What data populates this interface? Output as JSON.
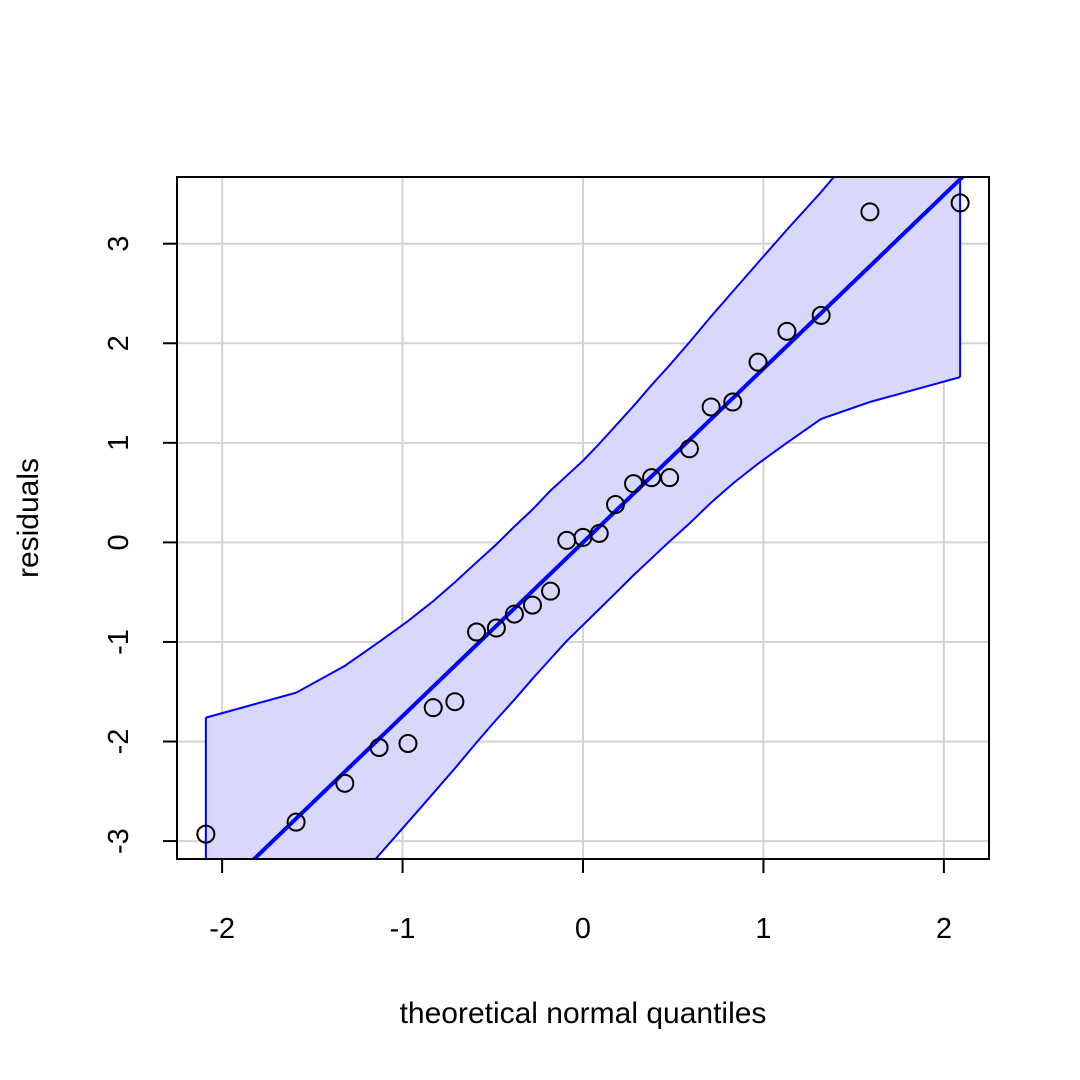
{
  "chart_data": {
    "type": "scatter",
    "title": "",
    "xlabel": "theoretical normal quantiles",
    "ylabel": "residuals",
    "xlim": [
      -2.25,
      2.25
    ],
    "ylim": [
      -3.18,
      3.67
    ],
    "xticks": [
      -2,
      -1,
      0,
      1,
      2
    ],
    "xtick_labels": [
      "-2",
      "-1",
      "0",
      "1",
      "2"
    ],
    "yticks": [
      -3,
      -2,
      -1,
      0,
      1,
      2,
      3
    ],
    "ytick_labels": [
      "-3",
      "-2",
      "-1",
      "0",
      "1",
      "2",
      "3"
    ],
    "grid": true,
    "points": {
      "x": [
        -2.09,
        -1.59,
        -1.32,
        -1.13,
        -0.97,
        -0.83,
        -0.71,
        -0.59,
        -0.48,
        -0.38,
        -0.28,
        -0.18,
        -0.09,
        0.0,
        0.09,
        0.18,
        0.28,
        0.38,
        0.48,
        0.59,
        0.71,
        0.83,
        0.97,
        1.13,
        1.32,
        1.59,
        2.09
      ],
      "y": [
        -2.93,
        -2.81,
        -2.42,
        -2.06,
        -2.02,
        -1.66,
        -1.6,
        -0.9,
        -0.86,
        -0.72,
        -0.63,
        -0.49,
        0.02,
        0.05,
        0.09,
        0.38,
        0.59,
        0.65,
        0.65,
        0.94,
        1.36,
        1.41,
        1.81,
        2.12,
        2.28,
        3.32,
        3.41
      ]
    },
    "reference_line": {
      "intercept": 0.0,
      "slope": 1.745,
      "color": "#0000ff"
    },
    "envelope": {
      "x": [
        -2.09,
        -1.59,
        -1.32,
        -1.13,
        -0.97,
        -0.83,
        -0.71,
        -0.59,
        -0.48,
        -0.38,
        -0.28,
        -0.18,
        -0.09,
        0.0,
        0.09,
        0.18,
        0.28,
        0.38,
        0.48,
        0.59,
        0.71,
        0.83,
        0.97,
        1.13,
        1.32,
        1.59,
        2.09
      ],
      "upper": [
        -1.76,
        -1.51,
        -1.24,
        -1.0,
        -0.79,
        -0.59,
        -0.4,
        -0.2,
        -0.02,
        0.16,
        0.33,
        0.52,
        0.67,
        0.82,
        0.99,
        1.17,
        1.37,
        1.58,
        1.78,
        2.01,
        2.27,
        2.52,
        2.81,
        3.14,
        3.52,
        4.1,
        5.2
      ],
      "lower": [
        -5.2,
        -4.1,
        -3.53,
        -3.14,
        -2.81,
        -2.52,
        -2.27,
        -2.01,
        -1.78,
        -1.58,
        -1.37,
        -1.17,
        -0.99,
        -0.83,
        -0.67,
        -0.51,
        -0.33,
        -0.16,
        0.01,
        0.19,
        0.4,
        0.59,
        0.79,
        1.0,
        1.24,
        1.41,
        1.66
      ],
      "fill": "#d8d8fc",
      "stroke": "#0000ff"
    },
    "colors": {
      "points": "#000000",
      "grid": "#d3d3d3",
      "frame": "#000000"
    }
  }
}
